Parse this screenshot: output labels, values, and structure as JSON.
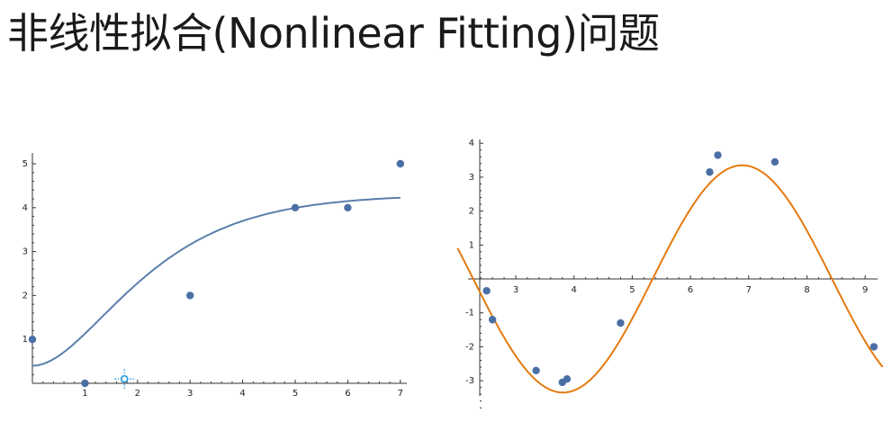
{
  "title": "非线性拟合(Nonlinear Fitting)问题",
  "colors": {
    "points": "#4a6fa5",
    "fit_left": "#5a7fab",
    "fit_right": "#e47a10",
    "axis": "#333333",
    "marker": "#2f9fe0"
  },
  "chart_data": [
    {
      "type": "scatter",
      "points": [
        [
          0,
          1
        ],
        [
          1,
          0
        ],
        [
          3,
          2
        ],
        [
          5,
          4
        ],
        [
          6,
          4
        ],
        [
          7,
          5
        ]
      ],
      "fit_curve": "monotone increasing fit",
      "xlim": [
        0,
        7.2
      ],
      "ylim": [
        0,
        5.3
      ],
      "xticks": [
        "1",
        "2",
        "3",
        "4",
        "5",
        "6",
        "7"
      ],
      "yticks": [
        "1",
        "2",
        "3",
        "4",
        "5"
      ],
      "cursor_marker": [
        1.75,
        0.1
      ]
    },
    {
      "type": "scatter",
      "points": [
        [
          2.5,
          -0.35
        ],
        [
          2.6,
          -1.2
        ],
        [
          3.35,
          -2.7
        ],
        [
          3.8,
          -3.05
        ],
        [
          3.88,
          -2.95
        ],
        [
          4.8,
          -1.3
        ],
        [
          6.33,
          3.15
        ],
        [
          6.47,
          3.65
        ],
        [
          7.45,
          3.45
        ],
        [
          9.15,
          -2.0
        ]
      ],
      "fit_curve": "sinusoidal fit",
      "xlim": [
        2.0,
        9.3
      ],
      "ylim": [
        -3.4,
        4.1
      ],
      "xticks": [
        "3",
        "4",
        "5",
        "6",
        "7",
        "8",
        "9"
      ],
      "yticks": [
        "4",
        "3",
        "2",
        "1",
        "-1",
        "-2",
        "-3"
      ]
    }
  ]
}
